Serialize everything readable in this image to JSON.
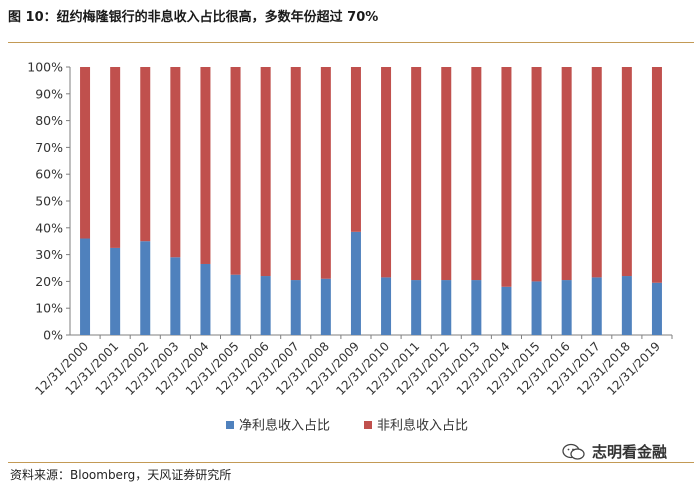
{
  "header": {
    "title": "图 10：纽约梅隆银行的非息收入占比很高，多数年份超过 70%"
  },
  "footer": {
    "source": "资料来源：Bloomberg，天风证券研究所",
    "watermark": "志明看金融"
  },
  "colors": {
    "net_interest": "#4f81bd",
    "non_interest": "#c0504d",
    "rule": "#c39a55"
  },
  "chart_data": {
    "type": "bar",
    "stacked": true,
    "percent_stacked": true,
    "categories": [
      "12/31/2000",
      "12/31/2001",
      "12/31/2002",
      "12/31/2003",
      "12/31/2004",
      "12/31/2005",
      "12/31/2006",
      "12/31/2007",
      "12/31/2008",
      "12/31/2009",
      "12/31/2010",
      "12/31/2011",
      "12/31/2012",
      "12/31/2013",
      "12/31/2014",
      "12/31/2015",
      "12/31/2016",
      "12/31/2017",
      "12/31/2018",
      "12/31/2019"
    ],
    "series": [
      {
        "name": "净利息收入占比",
        "values": [
          36,
          32.5,
          35,
          29,
          26.5,
          22.5,
          22,
          20.5,
          21,
          38.5,
          21.5,
          20.5,
          20.5,
          20.5,
          18,
          20,
          20.5,
          21.5,
          22,
          19.5
        ]
      },
      {
        "name": "非利息收入占比",
        "values": [
          64,
          67.5,
          65,
          71,
          73.5,
          77.5,
          78,
          79.5,
          79,
          61.5,
          78.5,
          79.5,
          79.5,
          79.5,
          82,
          80,
          79.5,
          78.5,
          78,
          80.5
        ]
      }
    ],
    "yticks": [
      "0%",
      "10%",
      "20%",
      "30%",
      "40%",
      "50%",
      "60%",
      "70%",
      "80%",
      "90%",
      "100%"
    ],
    "ylim": [
      0,
      100
    ],
    "grid": false,
    "legend_position": "bottom"
  }
}
